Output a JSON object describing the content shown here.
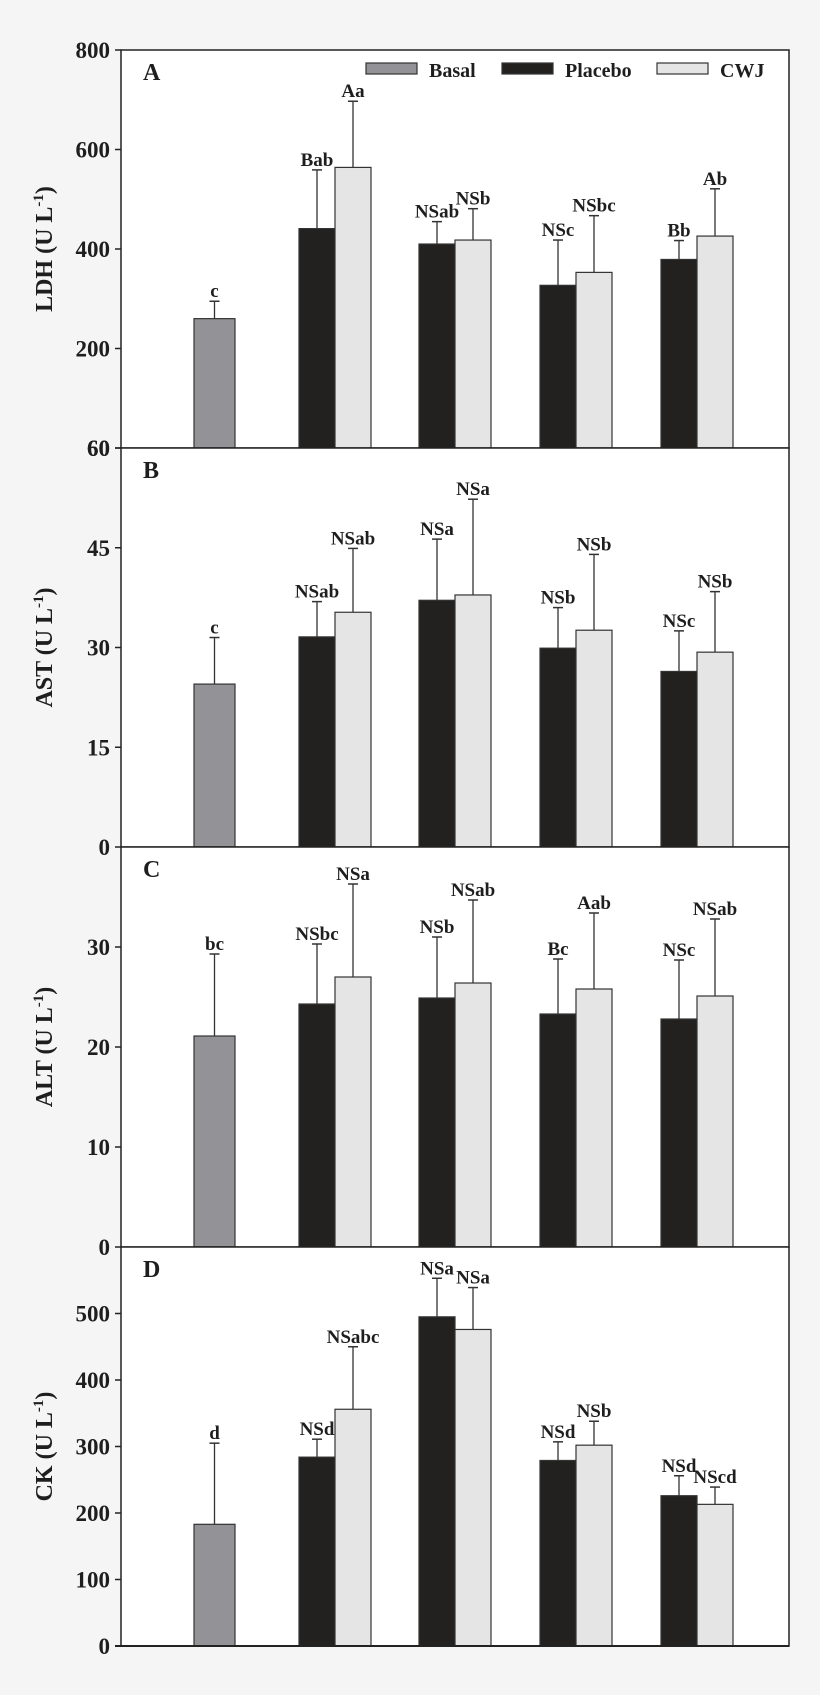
{
  "legend": [
    {
      "name": "Basal",
      "color": "#939397"
    },
    {
      "name": "Placebo",
      "color": "#222120"
    },
    {
      "name": "CWJ",
      "color": "#e4e5e4"
    }
  ],
  "chart_data": [
    {
      "type": "bar",
      "panel": "A",
      "ylabel": "LDH (U L",
      "ylabel_sup": "-1",
      "ylabel_end": ")",
      "ylim": [
        0,
        800
      ],
      "yticks": [
        200,
        400,
        600,
        800
      ],
      "ytick_labels": [
        "200",
        "400",
        "600",
        "800"
      ],
      "bottom_label": "60",
      "groups": 5,
      "series": [
        {
          "name": "Basal",
          "groups": [
            0
          ],
          "values": [
            260
          ],
          "errors": [
            295
          ],
          "labels": [
            "c"
          ]
        },
        {
          "name": "Placebo",
          "groups": [
            1,
            2,
            3,
            4
          ],
          "values": [
            441,
            410,
            327,
            379
          ],
          "errors": [
            559,
            455,
            418,
            417
          ],
          "labels": [
            "Bab",
            "NSab",
            "NSc",
            "Bb"
          ]
        },
        {
          "name": "CWJ",
          "groups": [
            1,
            2,
            3,
            4
          ],
          "values": [
            564,
            418,
            353,
            426
          ],
          "errors": [
            697,
            481,
            467,
            521
          ],
          "labels": [
            "Aa",
            "NSb",
            "NSbc",
            "Ab"
          ]
        }
      ]
    },
    {
      "type": "bar",
      "panel": "B",
      "ylabel": "AST (U L",
      "ylabel_sup": "-1",
      "ylabel_end": ")",
      "ylim": [
        0,
        60
      ],
      "yticks": [
        15,
        30,
        45,
        60
      ],
      "ytick_labels": [
        "15",
        "30",
        "45",
        "60"
      ],
      "bottom_label": "0",
      "groups": 5,
      "series": [
        {
          "name": "Basal",
          "groups": [
            0
          ],
          "values": [
            24.5
          ],
          "errors": [
            31.5
          ],
          "labels": [
            "c"
          ]
        },
        {
          "name": "Placebo",
          "groups": [
            1,
            2,
            3,
            4
          ],
          "values": [
            31.6,
            37.1,
            29.9,
            26.4
          ],
          "errors": [
            36.9,
            46.3,
            36.0,
            32.5
          ],
          "labels": [
            "NSab",
            "NSa",
            "NSb",
            "NSc"
          ]
        },
        {
          "name": "CWJ",
          "groups": [
            1,
            2,
            3,
            4
          ],
          "values": [
            35.3,
            37.9,
            32.6,
            29.3
          ],
          "errors": [
            44.9,
            52.3,
            44.0,
            38.4
          ],
          "labels": [
            "NSab",
            "NSa",
            "NSb",
            "NSb"
          ]
        }
      ]
    },
    {
      "type": "bar",
      "panel": "C",
      "ylabel": "ALT (U L",
      "ylabel_sup": "-1",
      "ylabel_end": ")",
      "ylim": [
        0,
        40
      ],
      "yticks": [
        10,
        20,
        30
      ],
      "ytick_labels": [
        "10",
        "20",
        "30"
      ],
      "bottom_label": "0",
      "groups": 5,
      "series": [
        {
          "name": "Basal",
          "groups": [
            0
          ],
          "values": [
            21.1
          ],
          "errors": [
            29.3
          ],
          "labels": [
            "bc"
          ]
        },
        {
          "name": "Placebo",
          "groups": [
            1,
            2,
            3,
            4
          ],
          "values": [
            24.3,
            24.9,
            23.3,
            22.8
          ],
          "errors": [
            30.3,
            31.0,
            28.8,
            28.7
          ],
          "labels": [
            "NSbc",
            "NSb",
            "Bc",
            "NSc"
          ]
        },
        {
          "name": "CWJ",
          "groups": [
            1,
            2,
            3,
            4
          ],
          "values": [
            27.0,
            26.4,
            25.8,
            25.1
          ],
          "errors": [
            36.3,
            34.7,
            33.4,
            32.8
          ],
          "labels": [
            "NSa",
            "NSab",
            "Aab",
            "NSab"
          ]
        }
      ]
    },
    {
      "type": "bar",
      "panel": "D",
      "ylabel": "CK (U L",
      "ylabel_sup": "-1",
      "ylabel_end": ")",
      "ylim": [
        0,
        600
      ],
      "yticks": [
        100,
        200,
        300,
        400,
        500
      ],
      "ytick_labels": [
        "100",
        "200",
        "300",
        "400",
        "500"
      ],
      "bottom_label": "0",
      "groups": 5,
      "series": [
        {
          "name": "Basal",
          "groups": [
            0
          ],
          "values": [
            183
          ],
          "errors": [
            305
          ],
          "labels": [
            "d"
          ]
        },
        {
          "name": "Placebo",
          "groups": [
            1,
            2,
            3,
            4
          ],
          "values": [
            284,
            495,
            279,
            226
          ],
          "errors": [
            311,
            553,
            307,
            256
          ],
          "labels": [
            "NSd",
            "NSa",
            "NSd",
            "NSd"
          ]
        },
        {
          "name": "CWJ",
          "groups": [
            1,
            2,
            3,
            4
          ],
          "values": [
            356,
            476,
            302,
            213
          ],
          "errors": [
            450,
            539,
            338,
            239
          ],
          "labels": [
            "NSabc",
            "NSa",
            "NSb",
            "NScd"
          ]
        }
      ]
    }
  ]
}
